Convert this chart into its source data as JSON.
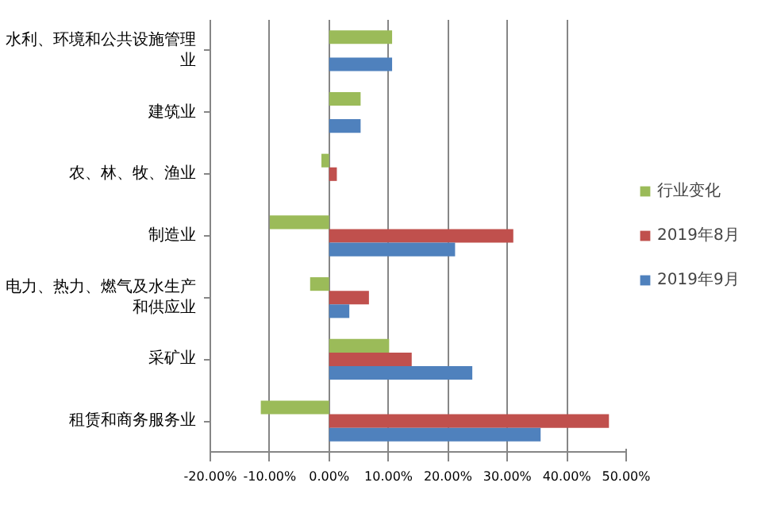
{
  "chart_data": {
    "type": "bar",
    "orientation": "horizontal",
    "categories": [
      "水利、环境和公共设施管理业",
      "建筑业",
      "农、林、牧、渔业",
      "制造业",
      "电力、热力、燃气及水生产和供应业",
      "采矿业",
      "租赁和商务服务业"
    ],
    "series": [
      {
        "name": "行业变化",
        "color": "#9bbb59",
        "values": [
          10.6,
          5.3,
          -1.3,
          -10.0,
          -3.2,
          10.1,
          -11.5
        ]
      },
      {
        "name": "2019年8月",
        "color": "#c0504d",
        "values": [
          null,
          null,
          1.3,
          31.0,
          6.7,
          13.9,
          47.1
        ]
      },
      {
        "name": "2019年9月",
        "color": "#4f81bd",
        "values": [
          10.6,
          5.3,
          null,
          21.2,
          3.4,
          24.1,
          35.6
        ]
      }
    ],
    "xlim": [
      -20,
      50
    ],
    "xticks": [
      {
        "value": -20,
        "label": "-20.00%"
      },
      {
        "value": -10,
        "label": "-10.00%"
      },
      {
        "value": 0,
        "label": "0.00%"
      },
      {
        "value": 10,
        "label": "10.00%"
      },
      {
        "value": 20,
        "label": "20.00%"
      },
      {
        "value": 30,
        "label": "30.00%"
      },
      {
        "value": 40,
        "label": "40.00%"
      },
      {
        "value": 50,
        "label": "50.00%"
      }
    ],
    "grid": "x",
    "legend": "right"
  }
}
